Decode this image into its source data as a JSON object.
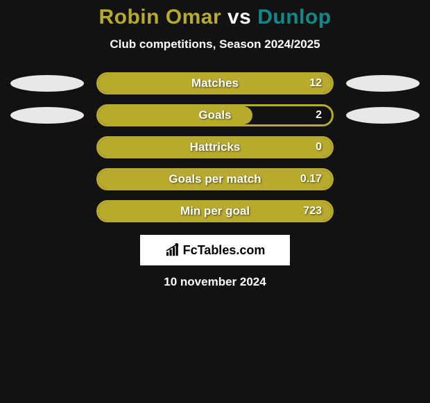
{
  "title": {
    "player1": "Robin Omar",
    "vs": "vs",
    "player2": "Dunlop",
    "player1_color": "#b7aa2d",
    "vs_color": "#ffffff",
    "player2_color": "#0f8a8a"
  },
  "subtitle": "Club competitions, Season 2024/2025",
  "bars": [
    {
      "label": "Matches",
      "value": "12",
      "fill_pct": 100,
      "show_bubbles": true
    },
    {
      "label": "Goals",
      "value": "2",
      "fill_pct": 66,
      "show_bubbles": true
    },
    {
      "label": "Hattricks",
      "value": "0",
      "fill_pct": 100,
      "show_bubbles": false
    },
    {
      "label": "Goals per match",
      "value": "0.17",
      "fill_pct": 100,
      "show_bubbles": false
    },
    {
      "label": "Min per goal",
      "value": "723",
      "fill_pct": 100,
      "show_bubbles": false
    }
  ],
  "style": {
    "bar_border_color": "#b7aa2d",
    "bar_border_width": 3,
    "bar_fill_color": "#b7aa2d",
    "left_bubble_color": "#e8e8e8",
    "right_bubble_color": "#e8e8e8",
    "background": "#121212"
  },
  "logo": {
    "text": "FcTables.com",
    "icon_name": "bar-chart-arrow-icon"
  },
  "date": "10 november 2024"
}
